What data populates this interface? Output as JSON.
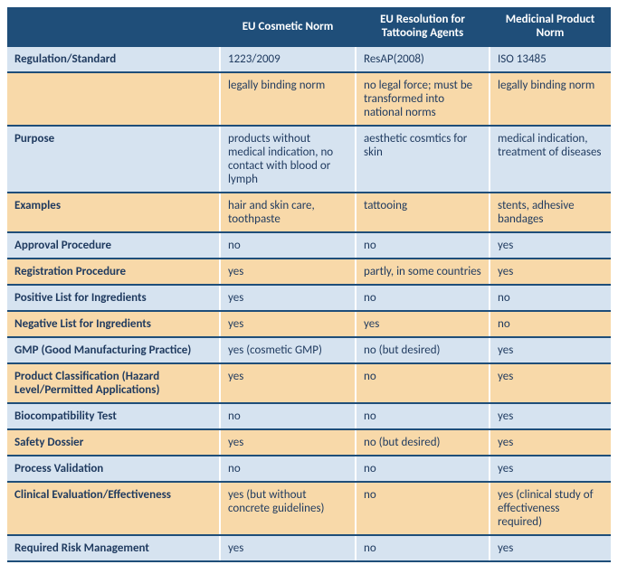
{
  "colors": {
    "header_bg": "#1f4e79",
    "header_text": "#ffffff",
    "band_orange": "#f8d9a9",
    "band_blue": "#d6e3f0",
    "rule": "#1f4e79",
    "text": "#1f3a5f"
  },
  "columns": {
    "label": "",
    "a": "EU Cosmetic Norm",
    "b": "EU Resolution for Tattooing Agents",
    "c": "Medicinal Product Norm"
  },
  "rows": [
    {
      "band": "blue",
      "label": "Regulation/Standard",
      "a": "1223/2009",
      "b": "ResAP(2008)",
      "c": "ISO 13485"
    },
    {
      "band": "orange",
      "label": "",
      "a": "legally binding norm",
      "b": "no legal force; must be transformed into national norms",
      "c": "legally binding norm"
    },
    {
      "band": "blue",
      "label": "Purpose",
      "a": "products without medical indication, no contact with blood or lymph",
      "b": "aesthetic cosmtics for skin",
      "c": "medical indication, treatment of diseases"
    },
    {
      "band": "orange",
      "label": "Examples",
      "a": "hair and skin care, toothpaste",
      "b": "tattooing",
      "c": "stents, adhesive bandages"
    },
    {
      "band": "blue",
      "label": "Approval Procedure",
      "a": "no",
      "b": "no",
      "c": "yes"
    },
    {
      "band": "orange",
      "label": "Registration Procedure",
      "a": "yes",
      "b": "partly, in some countries",
      "c": "yes"
    },
    {
      "band": "blue",
      "label": "Positive List for Ingredients",
      "a": "yes",
      "b": "no",
      "c": "no"
    },
    {
      "band": "orange",
      "label": "Negative List for Ingredients",
      "a": "yes",
      "b": "yes",
      "c": "no"
    },
    {
      "band": "blue",
      "label": "GMP (Good Manufacturing Practice)",
      "a": "yes (cosmetic GMP)",
      "b": "no (but desired)",
      "c": "yes"
    },
    {
      "band": "orange",
      "label": "Product Classification (Hazard Level/Permitted Applications)",
      "a": "yes",
      "b": "no",
      "c": "yes"
    },
    {
      "band": "blue",
      "label": "Biocompatibility Test",
      "a": "no",
      "b": "no",
      "c": "yes"
    },
    {
      "band": "orange",
      "label": "Safety Dossier",
      "a": "yes",
      "b": "no (but desired)",
      "c": "yes"
    },
    {
      "band": "blue",
      "label": "Process Validation",
      "a": "no",
      "b": "no",
      "c": "yes"
    },
    {
      "band": "orange",
      "label": "Clinical Evaluation/Effectiveness",
      "a": "yes (but without concrete guidelines)",
      "b": "no",
      "c": "yes (clinical study of effectiveness required)"
    },
    {
      "band": "blue",
      "label": "Required Risk Management",
      "a": "yes",
      "b": "no",
      "c": "yes"
    }
  ]
}
